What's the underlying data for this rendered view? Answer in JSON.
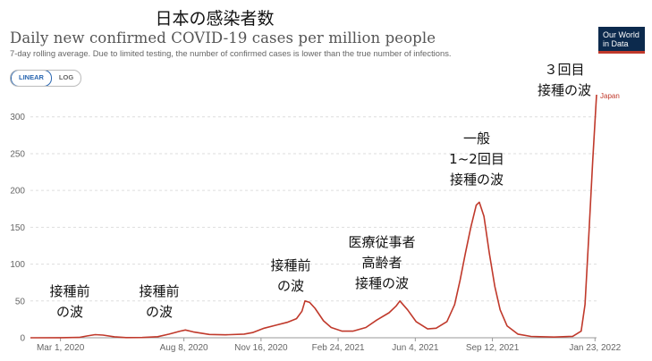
{
  "header": {
    "overlay_title": "日本の感染者数",
    "title": "Daily new confirmed COVID-19 cases per million people",
    "subtitle": "7-day rolling average. Due to limited testing, the number of confirmed cases is lower than the true number of infections.",
    "logo_line1": "Our World",
    "logo_line2": "in Data"
  },
  "scale_toggle": {
    "linear": "LINEAR",
    "log": "LOG",
    "selected": "LINEAR"
  },
  "colors": {
    "series": "#c0392b",
    "grid": "#dddddd",
    "axis": "#999999"
  },
  "chart_data": {
    "type": "line",
    "ylim": [
      0,
      330
    ],
    "y_ticks": [
      0,
      50,
      100,
      150,
      200,
      250,
      300
    ],
    "x_ticks": [
      "Mar 1, 2020",
      "Aug 8, 2020",
      "Nov 16, 2020",
      "Feb 24, 2021",
      "Jun 4, 2021",
      "Sep 12, 2021",
      "Jan 23, 2022"
    ],
    "x_tick_dates": [
      "2020-03-01",
      "2020-08-08",
      "2020-11-16",
      "2021-02-24",
      "2021-06-04",
      "2021-09-12",
      "2022-01-23"
    ],
    "grid": true,
    "series": [
      {
        "name": "Japan",
        "points": [
          [
            "2020-01-22",
            0
          ],
          [
            "2020-03-01",
            0.1
          ],
          [
            "2020-03-25",
            0.5
          ],
          [
            "2020-04-05",
            2.5
          ],
          [
            "2020-04-15",
            4.2
          ],
          [
            "2020-04-25",
            3.6
          ],
          [
            "2020-05-10",
            1.3
          ],
          [
            "2020-05-25",
            0.3
          ],
          [
            "2020-06-15",
            0.4
          ],
          [
            "2020-07-05",
            1.5
          ],
          [
            "2020-07-20",
            5
          ],
          [
            "2020-08-03",
            9
          ],
          [
            "2020-08-10",
            10.5
          ],
          [
            "2020-08-20",
            8
          ],
          [
            "2020-09-10",
            4.5
          ],
          [
            "2020-10-01",
            4
          ],
          [
            "2020-10-25",
            5
          ],
          [
            "2020-11-05",
            7
          ],
          [
            "2020-11-20",
            13
          ],
          [
            "2020-12-05",
            17
          ],
          [
            "2020-12-20",
            21
          ],
          [
            "2021-01-01",
            26
          ],
          [
            "2021-01-08",
            36
          ],
          [
            "2021-01-12",
            50
          ],
          [
            "2021-01-18",
            48
          ],
          [
            "2021-01-25",
            40
          ],
          [
            "2021-02-05",
            23
          ],
          [
            "2021-02-15",
            14
          ],
          [
            "2021-03-01",
            9
          ],
          [
            "2021-03-15",
            9
          ],
          [
            "2021-04-01",
            14
          ],
          [
            "2021-04-15",
            24
          ],
          [
            "2021-05-01",
            34
          ],
          [
            "2021-05-10",
            43
          ],
          [
            "2021-05-15",
            50
          ],
          [
            "2021-05-25",
            38
          ],
          [
            "2021-06-05",
            22
          ],
          [
            "2021-06-20",
            12
          ],
          [
            "2021-07-01",
            13
          ],
          [
            "2021-07-15",
            22
          ],
          [
            "2021-07-25",
            45
          ],
          [
            "2021-08-01",
            78
          ],
          [
            "2021-08-08",
            115
          ],
          [
            "2021-08-15",
            150
          ],
          [
            "2021-08-22",
            180
          ],
          [
            "2021-08-26",
            184
          ],
          [
            "2021-09-01",
            165
          ],
          [
            "2021-09-08",
            115
          ],
          [
            "2021-09-15",
            70
          ],
          [
            "2021-09-22",
            38
          ],
          [
            "2021-10-01",
            16
          ],
          [
            "2021-10-15",
            5
          ],
          [
            "2021-11-01",
            1.8
          ],
          [
            "2021-12-01",
            1
          ],
          [
            "2021-12-25",
            2
          ],
          [
            "2022-01-05",
            9
          ],
          [
            "2022-01-10",
            45
          ],
          [
            "2022-01-15",
            140
          ],
          [
            "2022-01-20",
            240
          ],
          [
            "2022-01-25",
            330
          ]
        ]
      }
    ]
  },
  "annotations": [
    {
      "id": "wave1",
      "lines": [
        "接種前",
        "の波"
      ]
    },
    {
      "id": "wave2",
      "lines": [
        "接種前",
        "の波"
      ]
    },
    {
      "id": "wave3",
      "lines": [
        "接種前",
        "の波"
      ]
    },
    {
      "id": "wave4",
      "lines": [
        "医療従事者",
        "高齢者",
        "接種の波"
      ]
    },
    {
      "id": "wave5",
      "lines": [
        "一般",
        "1~2回目",
        "接種の波"
      ]
    },
    {
      "id": "wave6",
      "lines": [
        "３回目",
        "接種の波"
      ]
    }
  ]
}
